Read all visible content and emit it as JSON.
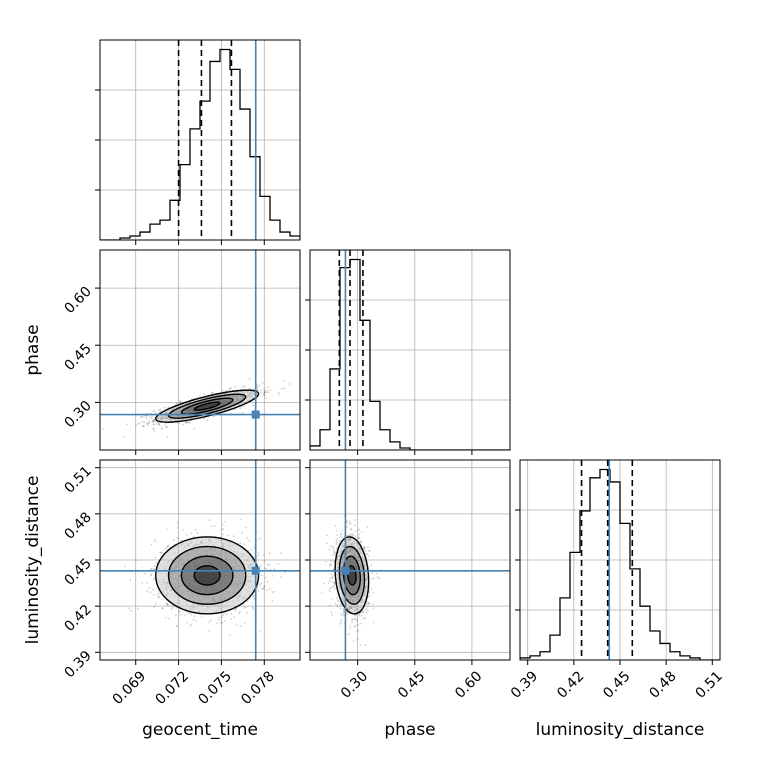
{
  "chart_data": {
    "type": "corner",
    "parameters": [
      "geocent_time",
      "phase",
      "luminosity_distance"
    ],
    "labels": {
      "x": [
        "geocent_time",
        "phase",
        "luminosity_distance"
      ],
      "y": [
        "",
        "phase",
        "luminosity_distance"
      ]
    },
    "ranges": {
      "geocent_time": [
        0.0665,
        0.0805
      ],
      "phase": [
        0.175,
        0.7
      ],
      "luminosity_distance": [
        0.385,
        0.515
      ]
    },
    "ticks": {
      "geocent_time": [
        0.069,
        0.072,
        0.075,
        0.078
      ],
      "phase": [
        0.3,
        0.45,
        0.6
      ],
      "luminosity_distance": [
        0.39,
        0.42,
        0.45,
        0.48,
        0.51
      ]
    },
    "tick_labels": {
      "geocent_time": [
        "0.069",
        "0.072",
        "0.075",
        "0.078"
      ],
      "phase": [
        "0.30",
        "0.45",
        "0.60"
      ],
      "luminosity_distance": [
        "0.39",
        "0.42",
        "0.45",
        "0.48",
        "0.51"
      ]
    },
    "truths": {
      "geocent_time": 0.0774,
      "phase": 0.268,
      "luminosity_distance": 0.443
    },
    "quantiles": {
      "geocent_time": [
        0.072,
        0.0736,
        0.0757
      ],
      "phase": [
        0.252,
        0.28,
        0.314
      ],
      "luminosity_distance": [
        0.425,
        0.442,
        0.458
      ]
    },
    "histograms": {
      "geocent_time": {
        "edges_range": [
          0.0665,
          0.0805
        ],
        "counts": [
          0,
          0,
          0.5,
          1,
          2,
          4,
          5,
          10,
          19,
          28,
          35,
          45,
          48,
          43,
          33,
          21,
          11,
          5,
          2,
          1
        ]
      },
      "phase": {
        "edges_range": [
          0.175,
          0.7
        ],
        "counts": [
          1,
          5,
          20,
          45,
          47,
          32,
          12,
          5,
          2,
          0.5,
          0,
          0,
          0,
          0,
          0,
          0,
          0,
          0,
          0,
          0
        ]
      },
      "luminosity_distance": {
        "edges_range": [
          0.385,
          0.515
        ],
        "counts": [
          0.5,
          1,
          2,
          6,
          15,
          26,
          36,
          44,
          46,
          43,
          33,
          22,
          13,
          7,
          4,
          2,
          1,
          0.5,
          0,
          0
        ]
      }
    },
    "pair_stats": {
      "phase_vs_geocent_time": {
        "mean": [
          0.074,
          0.29
        ],
        "sd": [
          0.0018,
          0.021
        ],
        "corr": 0.78
      },
      "luminosity_distance_vs_geocent_time": {
        "mean": [
          0.074,
          0.44
        ],
        "sd": [
          0.0018,
          0.0125
        ],
        "corr": 0.0
      },
      "luminosity_distance_vs_phase": {
        "mean": [
          0.285,
          0.44
        ],
        "sd": [
          0.022,
          0.0125
        ],
        "corr": -0.15
      }
    },
    "colors": {
      "truth": "#4682b4",
      "hist": "#000000",
      "grid": "#b0b0b0",
      "quantile": "#000000"
    },
    "grid": true
  }
}
